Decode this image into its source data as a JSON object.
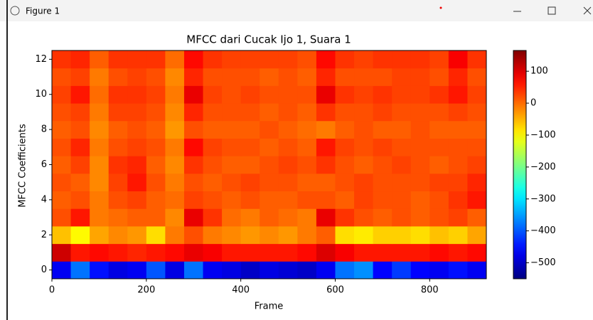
{
  "window_title": "Figure 1",
  "chart_data": {
    "type": "heatmap",
    "title": "MFCC dari Cucak Ijo 1, Suara 1",
    "x_label": "Frame",
    "y_label": "MFCC Coefficients",
    "x_edges": [
      0,
      40,
      80,
      120,
      160,
      200,
      240,
      280,
      320,
      360,
      400,
      440,
      480,
      520,
      560,
      600,
      640,
      680,
      720,
      760,
      800,
      840,
      880,
      920
    ],
    "y": [
      0,
      1,
      2,
      3,
      4,
      5,
      6,
      7,
      8,
      9,
      10,
      11,
      12
    ],
    "z": [
      [
        -470,
        -380,
        -450,
        -480,
        -470,
        -400,
        -480,
        -380,
        -470,
        -480,
        -500,
        -480,
        -490,
        -500,
        -470,
        -380,
        -360,
        -460,
        -420,
        -460,
        -470,
        -450,
        -470
      ],
      [
        110,
        60,
        70,
        60,
        50,
        60,
        70,
        90,
        80,
        60,
        60,
        60,
        60,
        70,
        100,
        80,
        60,
        60,
        60,
        60,
        70,
        60,
        70
      ],
      [
        -60,
        -100,
        -40,
        -20,
        -30,
        -80,
        -10,
        20,
        -10,
        -20,
        -30,
        -20,
        -30,
        -10,
        10,
        -80,
        -90,
        -70,
        -70,
        -80,
        -60,
        -70,
        -40
      ],
      [
        20,
        60,
        -10,
        0,
        10,
        10,
        -20,
        90,
        40,
        0,
        -10,
        10,
        0,
        -10,
        90,
        40,
        20,
        10,
        20,
        10,
        20,
        30,
        10
      ],
      [
        10,
        20,
        -10,
        20,
        30,
        10,
        0,
        30,
        20,
        10,
        20,
        10,
        10,
        20,
        20,
        10,
        30,
        20,
        20,
        10,
        20,
        40,
        60
      ],
      [
        20,
        10,
        -20,
        30,
        60,
        20,
        -10,
        20,
        10,
        20,
        30,
        20,
        20,
        10,
        10,
        20,
        30,
        20,
        20,
        20,
        30,
        30,
        50
      ],
      [
        10,
        30,
        -20,
        40,
        50,
        10,
        -20,
        40,
        20,
        10,
        10,
        20,
        30,
        20,
        40,
        20,
        10,
        20,
        30,
        20,
        10,
        20,
        30
      ],
      [
        20,
        50,
        -10,
        20,
        30,
        20,
        -10,
        70,
        30,
        20,
        20,
        10,
        20,
        10,
        60,
        30,
        20,
        30,
        20,
        20,
        20,
        20,
        20
      ],
      [
        10,
        20,
        -20,
        10,
        20,
        10,
        -30,
        20,
        10,
        10,
        10,
        20,
        10,
        0,
        -10,
        10,
        20,
        10,
        10,
        20,
        10,
        10,
        10
      ],
      [
        20,
        30,
        -10,
        30,
        30,
        20,
        -20,
        50,
        20,
        20,
        20,
        10,
        20,
        10,
        40,
        20,
        20,
        30,
        20,
        20,
        20,
        30,
        20
      ],
      [
        30,
        60,
        0,
        40,
        40,
        30,
        -10,
        90,
        30,
        20,
        30,
        20,
        20,
        20,
        90,
        40,
        30,
        40,
        30,
        30,
        40,
        60,
        30
      ],
      [
        20,
        30,
        -10,
        20,
        30,
        20,
        -20,
        50,
        20,
        20,
        20,
        10,
        20,
        10,
        50,
        20,
        20,
        20,
        30,
        30,
        20,
        50,
        20
      ],
      [
        40,
        50,
        10,
        40,
        40,
        40,
        0,
        70,
        40,
        30,
        30,
        30,
        30,
        20,
        70,
        40,
        30,
        40,
        40,
        40,
        30,
        80,
        40
      ]
    ],
    "xlim": [
      0,
      920
    ],
    "ylim": [
      -0.5,
      12.5
    ],
    "xticks": [
      0,
      200,
      400,
      600,
      800
    ],
    "yticks": [
      0,
      2,
      4,
      6,
      8,
      10,
      12
    ],
    "colormap": "jet",
    "clim": [
      -550,
      165
    ],
    "cticks": [
      {
        "value": -500,
        "label": "−500"
      },
      {
        "value": -400,
        "label": "−400"
      },
      {
        "value": -300,
        "label": "−300"
      },
      {
        "value": -200,
        "label": "−200"
      },
      {
        "value": -100,
        "label": "−100"
      },
      0,
      100
    ]
  }
}
